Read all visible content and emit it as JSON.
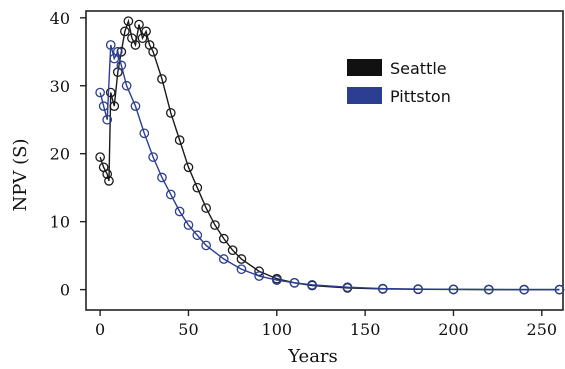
{
  "chart_data": {
    "type": "scatter",
    "title": "",
    "xlabel": "Years",
    "ylabel": "NPV (S)",
    "xlim": [
      -8,
      262
    ],
    "ylim": [
      -3,
      41
    ],
    "xticks": [
      0,
      50,
      100,
      150,
      200,
      250
    ],
    "yticks": [
      0,
      10,
      20,
      30,
      40
    ],
    "grid": false,
    "legend_position": "top-right",
    "series": [
      {
        "name": "Seattle",
        "color": "#1a1a1a",
        "marker": "open-circle",
        "x": [
          0,
          2,
          4,
          5,
          6,
          8,
          10,
          12,
          14,
          16,
          18,
          20,
          22,
          24,
          26,
          28,
          30,
          35,
          40,
          45,
          50,
          55,
          60,
          65,
          70,
          75,
          80,
          90,
          100,
          110,
          120,
          140,
          160,
          180,
          200,
          220,
          240,
          260
        ],
        "y": [
          19.5,
          18,
          17,
          16,
          29,
          27,
          32,
          35,
          38,
          39.5,
          37,
          36,
          39,
          37,
          38,
          36,
          35,
          31,
          26,
          22,
          18,
          15,
          12,
          9.5,
          7.5,
          5.8,
          4.5,
          2.7,
          1.6,
          1.0,
          0.6,
          0.25,
          0.1,
          0.05,
          0.02,
          0.0,
          0.0,
          0.0
        ]
      },
      {
        "name": "Pittston",
        "color": "#2b3e91",
        "marker": "open-circle",
        "x": [
          0,
          2,
          4,
          6,
          8,
          10,
          12,
          15,
          20,
          25,
          30,
          35,
          40,
          45,
          50,
          55,
          60,
          70,
          80,
          90,
          100,
          110,
          120,
          140,
          160,
          180,
          200,
          220,
          240,
          260
        ],
        "y": [
          29,
          27,
          25,
          36,
          34,
          35,
          33,
          30,
          27,
          23,
          19.5,
          16.5,
          14,
          11.5,
          9.5,
          8,
          6.5,
          4.5,
          3,
          2,
          1.4,
          1.0,
          0.7,
          0.35,
          0.15,
          0.08,
          0.04,
          0.02,
          0.0,
          0.0
        ]
      }
    ]
  }
}
